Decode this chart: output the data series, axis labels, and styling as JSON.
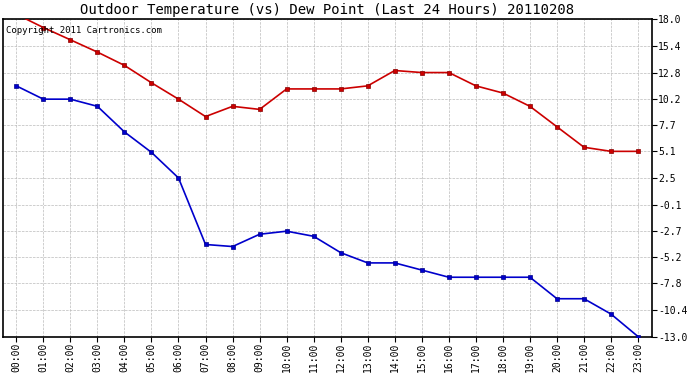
{
  "title": "Outdoor Temperature (vs) Dew Point (Last 24 Hours) 20110208",
  "copyright_text": "Copyright 2011 Cartronics.com",
  "hours": [
    "00:00",
    "01:00",
    "02:00",
    "03:00",
    "04:00",
    "05:00",
    "06:00",
    "07:00",
    "08:00",
    "09:00",
    "10:00",
    "11:00",
    "12:00",
    "13:00",
    "14:00",
    "15:00",
    "16:00",
    "17:00",
    "18:00",
    "19:00",
    "20:00",
    "21:00",
    "22:00",
    "23:00"
  ],
  "temp": [
    18.5,
    17.2,
    16.0,
    14.8,
    13.5,
    11.8,
    10.2,
    8.5,
    9.5,
    9.2,
    11.2,
    11.2,
    11.2,
    11.5,
    13.0,
    12.8,
    12.8,
    11.5,
    10.8,
    9.5,
    7.5,
    5.5,
    5.1,
    5.1
  ],
  "dewpoint": [
    11.5,
    10.2,
    10.2,
    9.5,
    7.0,
    5.0,
    2.5,
    -4.0,
    -4.2,
    -3.0,
    -2.7,
    -3.2,
    -4.8,
    -5.8,
    -5.8,
    -6.5,
    -7.2,
    -7.2,
    -7.2,
    -7.2,
    -9.3,
    -9.3,
    -10.8,
    -13.0
  ],
  "ylim": [
    -13.0,
    18.0
  ],
  "yticks": [
    18.0,
    15.4,
    12.8,
    10.2,
    7.7,
    5.1,
    2.5,
    -0.1,
    -2.7,
    -5.2,
    -7.8,
    -10.4,
    -13.0
  ],
  "ytick_labels": [
    "18.0",
    "15.4",
    "12.8",
    "10.2",
    "7.7",
    "5.1",
    "2.5",
    "-0.1",
    "-2.7",
    "-5.2",
    "-7.8",
    "-10.4",
    "-13.0"
  ],
  "temp_color": "#cc0000",
  "dewpoint_color": "#0000cc",
  "bg_color": "#ffffff",
  "grid_color": "#bbbbbb",
  "title_fontsize": 10,
  "tick_fontsize": 7,
  "copyright_fontsize": 6.5
}
